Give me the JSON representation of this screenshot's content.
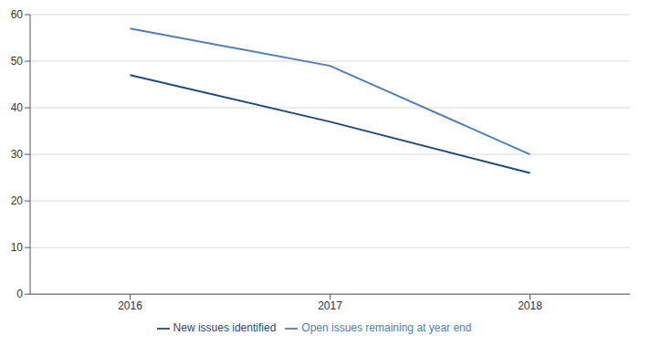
{
  "chart_data": {
    "type": "line",
    "categories": [
      "2016",
      "2017",
      "2018"
    ],
    "series": [
      {
        "name": "New issues identified",
        "color": "#1c4a87",
        "values": [
          47,
          37,
          26
        ]
      },
      {
        "name": "Open issues remaining at year end",
        "color": "#4a7fc1",
        "values": [
          57,
          49,
          30
        ]
      }
    ],
    "ylim": [
      0,
      60
    ],
    "yticks": [
      0,
      10,
      20,
      30,
      40,
      50,
      60
    ],
    "grid": true,
    "legend": "bottom"
  }
}
